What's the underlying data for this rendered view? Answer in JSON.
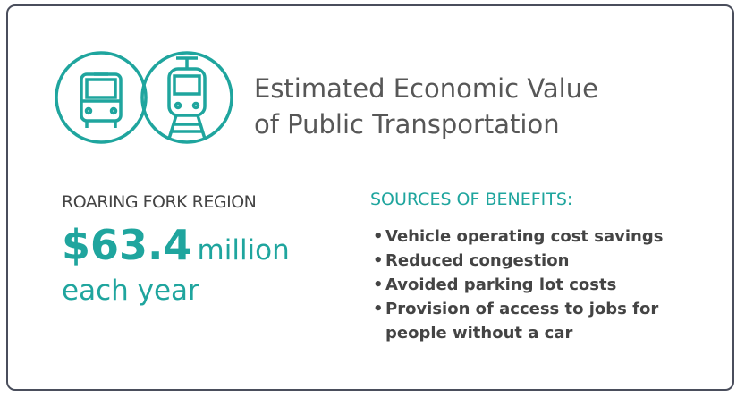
{
  "title_lines": [
    "Estimated Economic Value",
    "of Public Transportation"
  ],
  "region": "ROARING FORK REGION",
  "amount": "$63.4",
  "amount_unit": "million",
  "period": "each year",
  "sources_heading": "SOURCES OF BENEFITS:",
  "sources": [
    "Vehicle operating cost savings",
    "Reduced congestion",
    "Avoided parking lot costs",
    "Provision of access to jobs for people without a car"
  ]
}
